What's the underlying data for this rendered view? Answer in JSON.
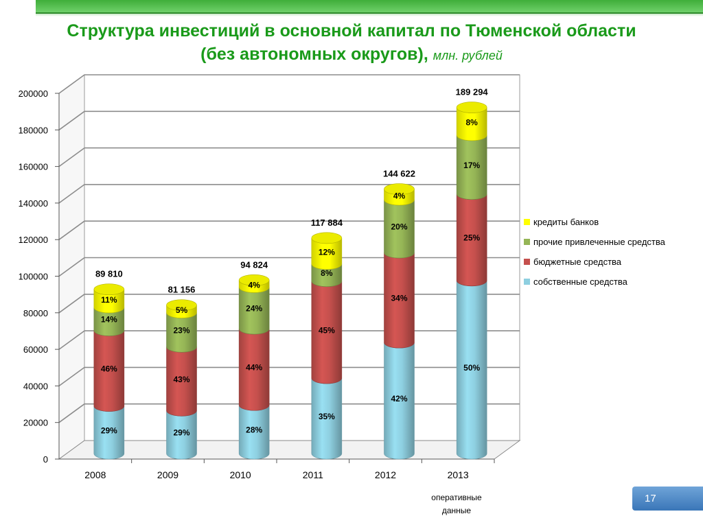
{
  "slide": {
    "title_line1": "Структура инвестиций в основной капитал по Тюменской области",
    "title_line2": "(без автономных округов),",
    "title_unit": "млн. рублей",
    "footnote_line1": "оперативные",
    "footnote_line2": "данные",
    "page_number": "17"
  },
  "chart_data": {
    "type": "bar",
    "stacked": true,
    "three_d": true,
    "categories": [
      "2008",
      "2009",
      "2010",
      "2011",
      "2012",
      "2013"
    ],
    "totals": [
      89810,
      81156,
      94824,
      117884,
      144622,
      189294
    ],
    "total_labels": [
      "89 810",
      "81 156",
      "94 824",
      "117 884",
      "144 622",
      "189 294"
    ],
    "series": [
      {
        "name": "собственные средства",
        "color": "#8ecfe0",
        "values": [
          26045,
          23535,
          26551,
          41259,
          60741,
          94647
        ],
        "labels": [
          "29%",
          "29%",
          "28%",
          "35%",
          "42%",
          "50%"
        ]
      },
      {
        "name": "бюджетные средства",
        "color": "#c5504d",
        "values": [
          41313,
          34897,
          41723,
          53048,
          49171,
          47324
        ],
        "labels": [
          "46%",
          "43%",
          "44%",
          "45%",
          "34%",
          "25%"
        ]
      },
      {
        "name": "прочие привлеченные средства",
        "color": "#95b556",
        "values": [
          12573,
          18666,
          22758,
          9431,
          28924,
          32180
        ],
        "labels": [
          "14%",
          "23%",
          "24%",
          "8%",
          "20%",
          "17%"
        ]
      },
      {
        "name": "кредиты банков",
        "color": "#ffff00",
        "values": [
          9879,
          4058,
          3793,
          14146,
          5785,
          15143
        ],
        "labels": [
          "11%",
          "5%",
          "4%",
          "12%",
          "4%",
          "8%"
        ]
      }
    ],
    "legend_order": [
      "кредиты банков",
      "прочие привлеченные средства",
      "бюджетные средства",
      "собственные средства"
    ],
    "y_ticks": [
      "0",
      "20000",
      "40000",
      "60000",
      "80000",
      "100000",
      "120000",
      "140000",
      "160000",
      "180000",
      "200000"
    ],
    "ylim": [
      0,
      200000
    ],
    "grid": true,
    "legend_position": "right"
  }
}
